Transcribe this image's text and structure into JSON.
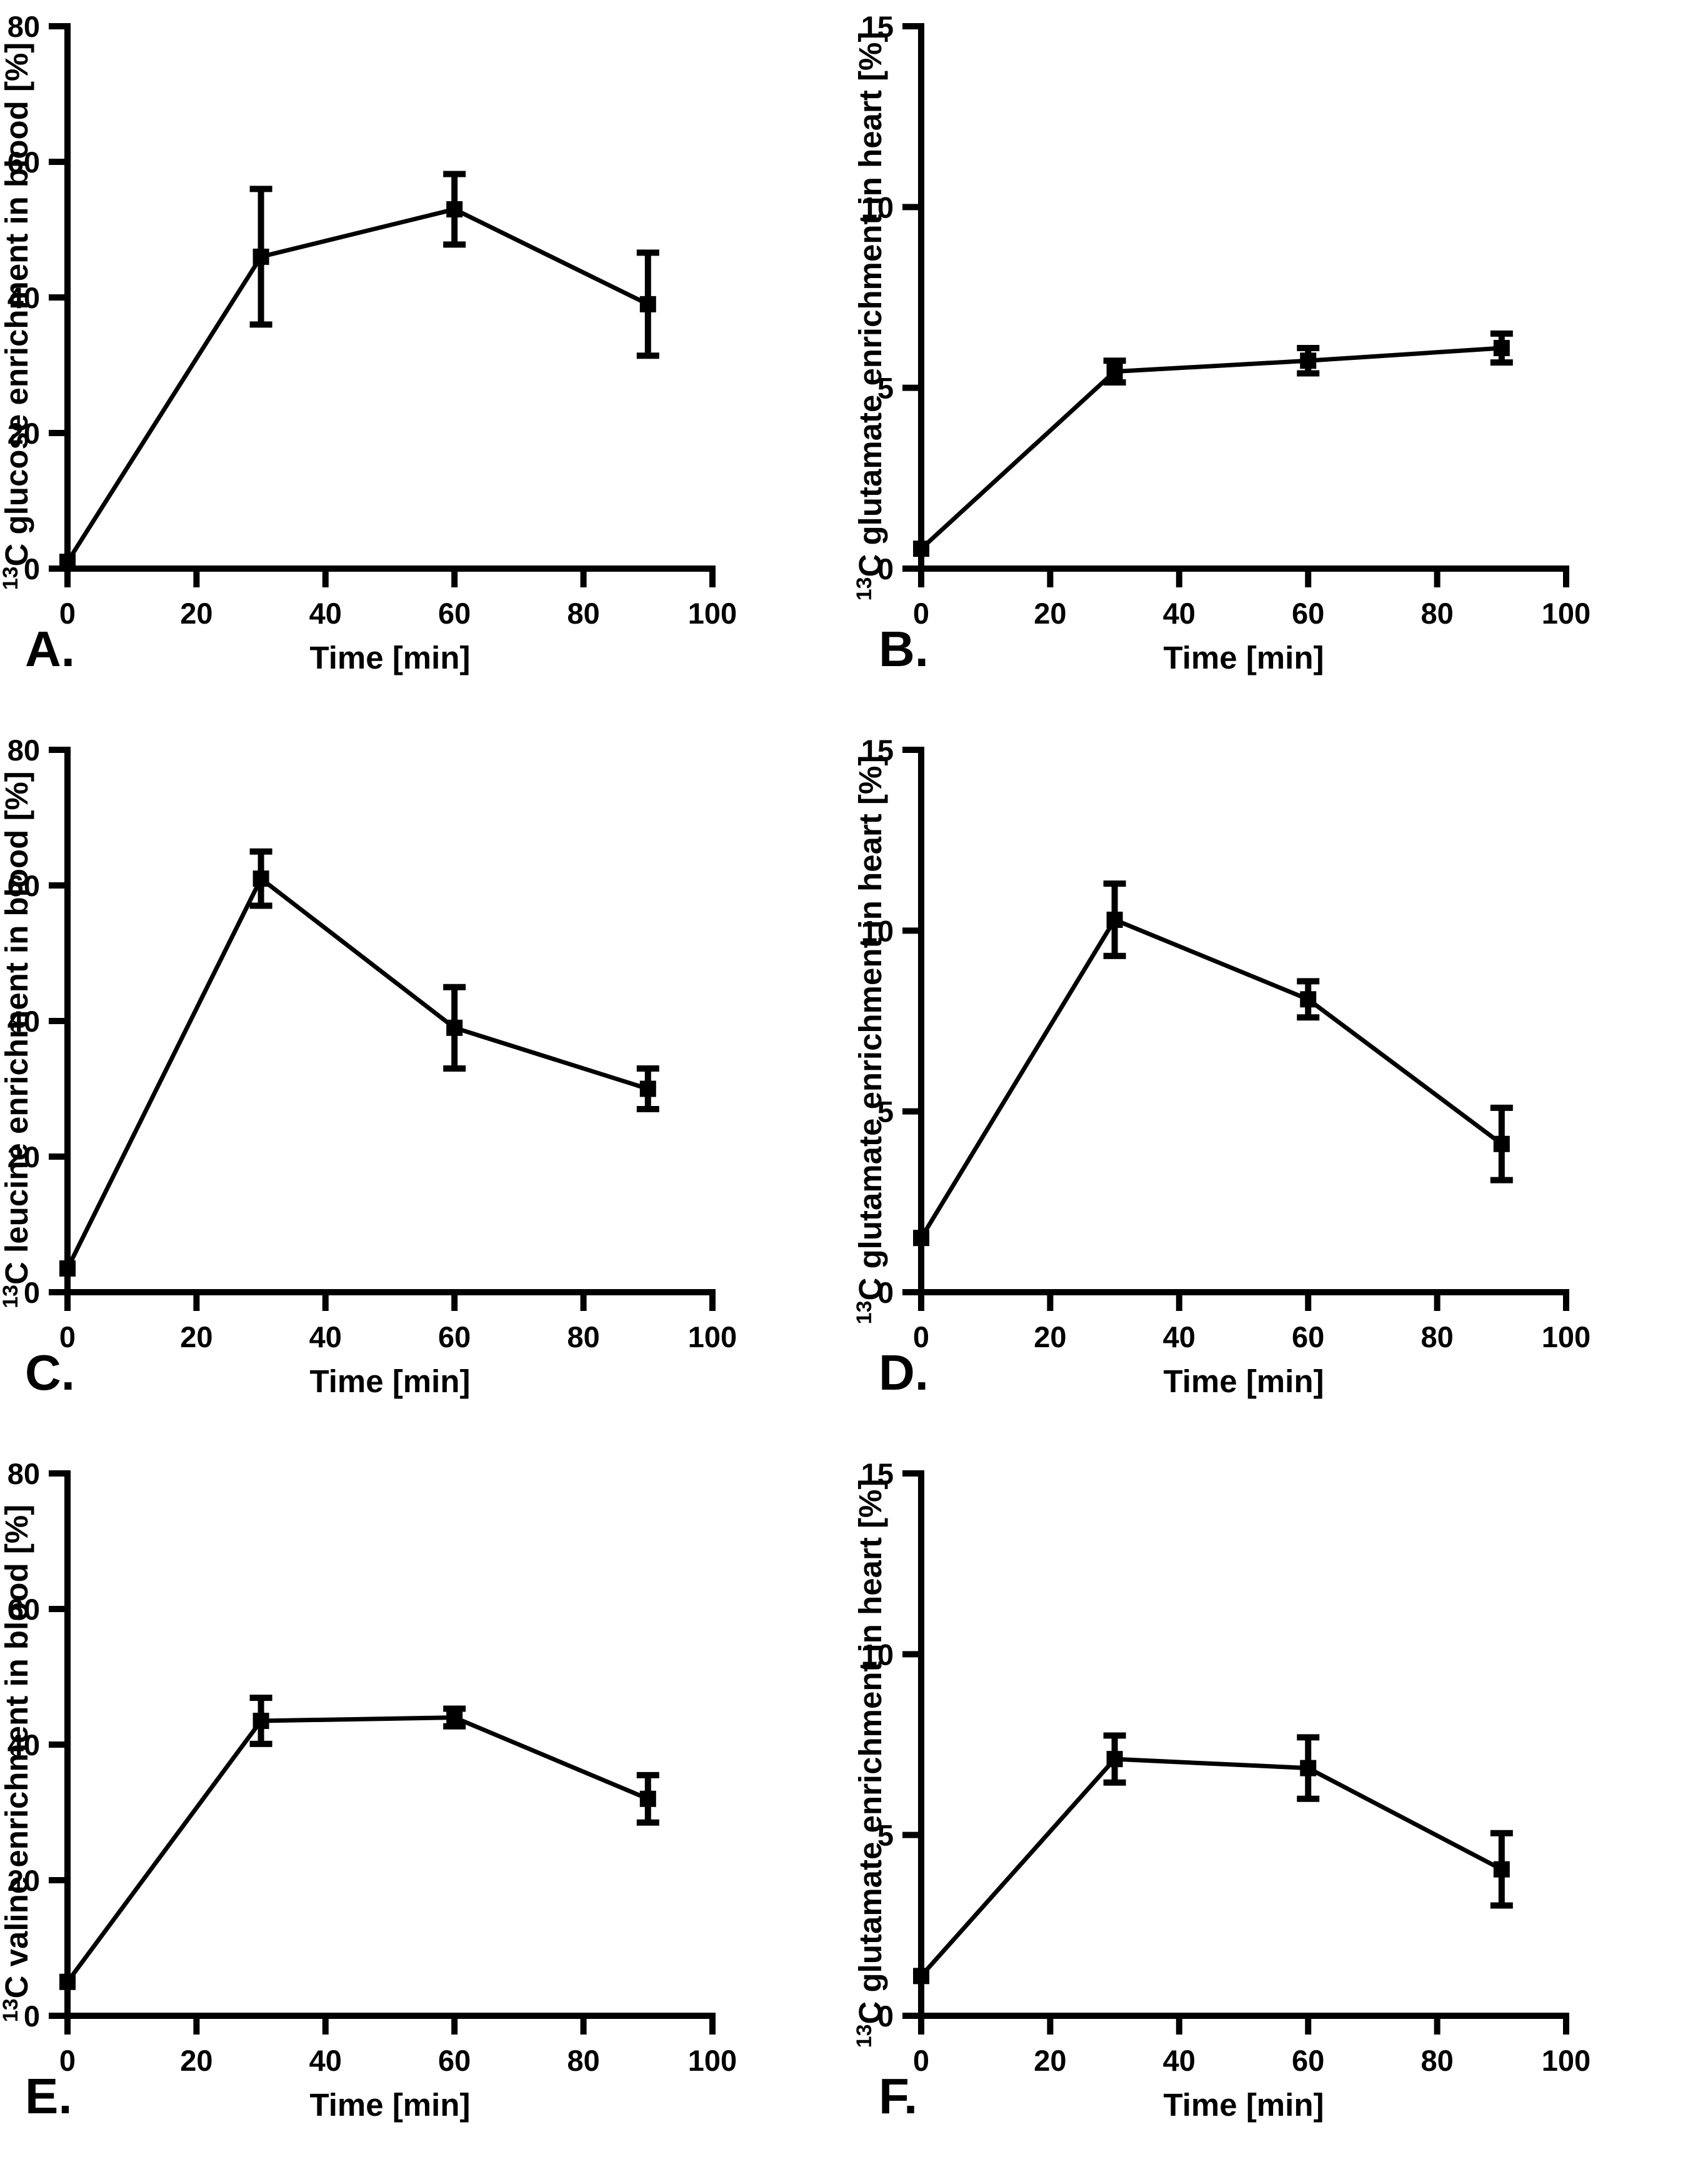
{
  "page": {
    "background_color": "#ffffff",
    "ink_color": "#000000",
    "figure_description": "Six-panel line chart figure with error bars"
  },
  "chart_data": [
    {
      "type": "line",
      "panel_letter": "A.",
      "ylabel_superscript": "13",
      "ylabel": "C glucose enrichment in blood [%]",
      "xlabel": "Time [min]",
      "x": [
        0,
        30,
        60,
        90
      ],
      "y": [
        1,
        46,
        53,
        39
      ],
      "yerr": [
        0,
        10,
        5.2,
        7.6
      ],
      "xlim": [
        0,
        100
      ],
      "ylim": [
        0,
        80
      ],
      "xticks": [
        0,
        20,
        40,
        60,
        80,
        100
      ],
      "yticks": [
        0,
        20,
        40,
        60,
        80
      ],
      "grid": false,
      "legend": null
    },
    {
      "type": "line",
      "panel_letter": "B.",
      "ylabel_superscript": "13",
      "ylabel": "C glutamate enrichment in heart  [%]",
      "xlabel": "Time [min]",
      "x": [
        0,
        30,
        60,
        90
      ],
      "y": [
        0.55,
        5.45,
        5.75,
        6.1
      ],
      "yerr": [
        0,
        0.3,
        0.35,
        0.4
      ],
      "xlim": [
        0,
        100
      ],
      "ylim": [
        0,
        15
      ],
      "xticks": [
        0,
        20,
        40,
        60,
        80,
        100
      ],
      "yticks": [
        0,
        5,
        10,
        15
      ],
      "grid": false,
      "legend": null
    },
    {
      "type": "line",
      "panel_letter": "C.",
      "ylabel_superscript": "13",
      "ylabel": "C leucine enrichment in blood [%]",
      "xlabel": "Time [min]",
      "x": [
        0,
        30,
        60,
        90
      ],
      "y": [
        3.5,
        61,
        39,
        30
      ],
      "yerr": [
        0,
        4,
        6,
        3
      ],
      "xlim": [
        0,
        100
      ],
      "ylim": [
        0,
        80
      ],
      "xticks": [
        0,
        20,
        40,
        60,
        80,
        100
      ],
      "yticks": [
        0,
        20,
        40,
        60,
        80
      ],
      "grid": false,
      "legend": null
    },
    {
      "type": "line",
      "panel_letter": "D.",
      "ylabel_superscript": "13",
      "ylabel": "C glutamate enrichment in heart [%]",
      "xlabel": "Time [min]",
      "x": [
        0,
        30,
        60,
        90
      ],
      "y": [
        1.5,
        10.3,
        8.1,
        4.1
      ],
      "yerr": [
        0,
        1.0,
        0.5,
        1.0
      ],
      "xlim": [
        0,
        100
      ],
      "ylim": [
        0,
        15
      ],
      "xticks": [
        0,
        20,
        40,
        60,
        80,
        100
      ],
      "yticks": [
        0,
        5,
        10,
        15
      ],
      "grid": false,
      "legend": null
    },
    {
      "type": "line",
      "panel_letter": "E.",
      "ylabel_superscript": "13",
      "ylabel": "C valine enrichment in blood [%]",
      "xlabel": "Time [min]",
      "x": [
        0,
        30,
        60,
        90
      ],
      "y": [
        5,
        43.5,
        44,
        32
      ],
      "yerr": [
        0,
        3.4,
        1.3,
        3.5
      ],
      "xlim": [
        0,
        100
      ],
      "ylim": [
        0,
        80
      ],
      "xticks": [
        0,
        20,
        40,
        60,
        80,
        100
      ],
      "yticks": [
        0,
        20,
        40,
        60,
        80
      ],
      "grid": false,
      "legend": null
    },
    {
      "type": "line",
      "panel_letter": "F.",
      "ylabel_superscript": "13",
      "ylabel": "C glutamate enrichment in heart [%]",
      "xlabel": "Time [min]",
      "x": [
        0,
        30,
        60,
        90
      ],
      "y": [
        1.1,
        7.1,
        6.85,
        4.05
      ],
      "yerr": [
        0,
        0.65,
        0.85,
        1.0
      ],
      "xlim": [
        0,
        100
      ],
      "ylim": [
        0,
        15
      ],
      "xticks": [
        0,
        20,
        40,
        60,
        80,
        100
      ],
      "yticks": [
        0,
        5,
        10,
        15
      ],
      "grid": false,
      "legend": null
    }
  ]
}
